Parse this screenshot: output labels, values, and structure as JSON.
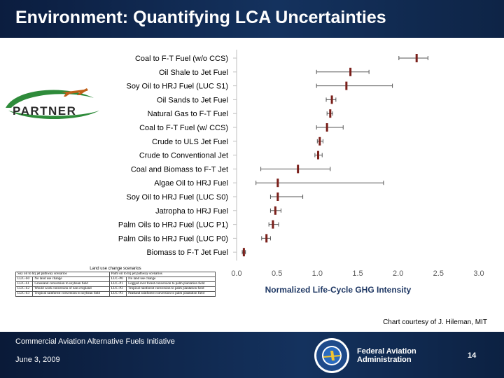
{
  "slide": {
    "title": "Environment: Quantifying LCA Uncertainties",
    "logo_text": "PARTNER",
    "credit": "Chart courtesy of J. Hileman, MIT",
    "footer_initiative": "Commercial Aviation Alternative Fuels Initiative",
    "footer_date": "June 3, 2009",
    "faa_line1": "Federal Aviation",
    "faa_line2": "Administration",
    "page_number": "14"
  },
  "scenario_table": {
    "caption": "Land use change scenarios",
    "headers": [
      "Soy oil to hrj jet pathway scenarios",
      "",
      "Palm oil to hrj jet pathway scenarios",
      ""
    ],
    "rows": [
      [
        "LUC-S0",
        "No land use change",
        "LUC-P0",
        "No land use change"
      ],
      [
        "LUC-S1",
        "Grassland conversion to soybean field",
        "LUC-P1",
        "Logged over forest conversion to palm plantation field"
      ],
      [
        "LUC-S2",
        "Would work conversion of non-cropland",
        "LUC-P2",
        "Tropical rainforest conversion to palm plantation field"
      ],
      [
        "LUC-S3",
        "Tropical rainforest conversion to soybean field",
        "LUC-P3",
        "Peatland rainforest conversion to palm plantation field"
      ]
    ]
  },
  "colors": {
    "marker": "#7a1f1a",
    "whisker": "#555555",
    "header_bg": "#0f2a52",
    "axis_label": "#1f3864",
    "tick": "#595959"
  },
  "chart_data": {
    "type": "errorbar",
    "title": "",
    "xlabel": "Normalized Life-Cycle GHG Intensity",
    "ylabel": "",
    "xlim": [
      0.0,
      3.0
    ],
    "xticks": [
      "0.0",
      "0.5",
      "1.0",
      "1.5",
      "2.0",
      "2.5",
      "3.0"
    ],
    "grid": false,
    "categories": [
      "Coal to F-T Fuel (w/o CCS)",
      "Oil Shale to Jet Fuel",
      "Soy Oil to HRJ Fuel (LUC S1)",
      "Oil Sands to Jet Fuel",
      "Natural Gas to F-T Fuel",
      "Coal to F-T Fuel (w/ CCS)",
      "Crude to ULS Jet Fuel",
      "Crude to Conventional Jet",
      "Coal and Biomass to F-T Jet",
      "Algae Oil to HRJ Fuel",
      "Soy Oil to HRJ Fuel (LUC S0)",
      "Jatropha to HRJ Fuel",
      "Palm Oils to HRJ Fuel (LUC P1)",
      "Palm Oils to HRJ Fuel (LUC P0)",
      "Biomass to F-T Jet Fuel"
    ],
    "values": [
      2.23,
      1.41,
      1.36,
      1.18,
      1.16,
      1.12,
      1.03,
      1.01,
      0.76,
      0.51,
      0.51,
      0.48,
      0.45,
      0.37,
      0.09
    ],
    "low": [
      2.01,
      0.99,
      0.99,
      1.11,
      1.12,
      0.99,
      1.0,
      0.97,
      0.3,
      0.24,
      0.42,
      0.42,
      0.4,
      0.31,
      0.07
    ],
    "high": [
      2.37,
      1.64,
      1.93,
      1.23,
      1.19,
      1.32,
      1.07,
      1.06,
      1.16,
      1.82,
      0.82,
      0.55,
      0.52,
      0.42,
      0.11
    ]
  }
}
